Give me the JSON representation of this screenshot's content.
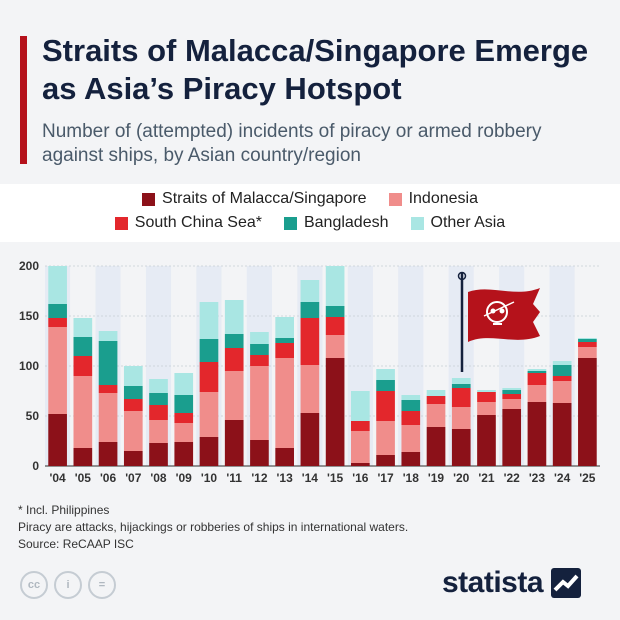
{
  "header": {
    "title": "Straits of Malacca/Singapore Emerge as Asia’s Piracy Hotspot",
    "subtitle": "Number of (attempted) incidents of piracy or armed robbery against ships, by Asian country/region"
  },
  "colors": {
    "accent": "#b5121b",
    "malacca": "#8c1119",
    "indonesia": "#f08d8b",
    "south_china_sea": "#e3272c",
    "bangladesh": "#1a9e8e",
    "other_asia": "#a9e6e3",
    "flag": "#b5121b"
  },
  "chart_data": {
    "type": "bar",
    "stacked": true,
    "categories": [
      "'04",
      "'05",
      "'06",
      "'07",
      "'08",
      "'09",
      "'10",
      "'11",
      "'12",
      "'13",
      "'14",
      "'15",
      "'16",
      "'17",
      "'18",
      "'19",
      "'20",
      "'21",
      "'22",
      "'23",
      "'24",
      "'25"
    ],
    "series": [
      {
        "name": "Straits of Malacca/Singapore",
        "values": [
          52,
          18,
          24,
          15,
          23,
          24,
          29,
          46,
          26,
          18,
          53,
          108,
          3,
          11,
          14,
          39,
          37,
          51,
          57,
          64,
          63,
          108
        ]
      },
      {
        "name": "Indonesia",
        "values": [
          87,
          72,
          49,
          40,
          23,
          19,
          45,
          49,
          74,
          90,
          48,
          23,
          32,
          34,
          27,
          23,
          22,
          13,
          10,
          17,
          22,
          11
        ]
      },
      {
        "name": "South China Sea*",
        "values": [
          9,
          20,
          8,
          12,
          15,
          10,
          30,
          23,
          11,
          15,
          47,
          18,
          10,
          30,
          14,
          8,
          19,
          10,
          5,
          12,
          5,
          5
        ]
      },
      {
        "name": "Bangladesh",
        "values": [
          14,
          19,
          44,
          13,
          12,
          18,
          23,
          14,
          11,
          5,
          16,
          11,
          0,
          11,
          11,
          0,
          4,
          0,
          4,
          2,
          11,
          3
        ]
      },
      {
        "name": "Other Asia",
        "values": [
          38,
          19,
          10,
          20,
          14,
          22,
          37,
          34,
          12,
          21,
          22,
          40,
          30,
          11,
          5,
          6,
          6,
          2,
          2,
          2,
          4,
          1
        ]
      }
    ],
    "ylim": [
      0,
      200
    ],
    "yticks": [
      0,
      50,
      100,
      150,
      200
    ],
    "grid": true,
    "legend_position": "top"
  },
  "legend": {
    "items": [
      {
        "label": "Straits of Malacca/Singapore"
      },
      {
        "label": "Indonesia"
      },
      {
        "label": "South China Sea*"
      },
      {
        "label": "Bangladesh"
      },
      {
        "label": "Other Asia"
      }
    ]
  },
  "footer": {
    "note1": "* Incl. Philippines",
    "note2": "Piracy are attacks, hijackings or robberies of ships in international waters.",
    "source": "Source: ReCAAP ISC",
    "brand": "statista",
    "cc_labels": [
      "cc",
      "i",
      "="
    ]
  }
}
